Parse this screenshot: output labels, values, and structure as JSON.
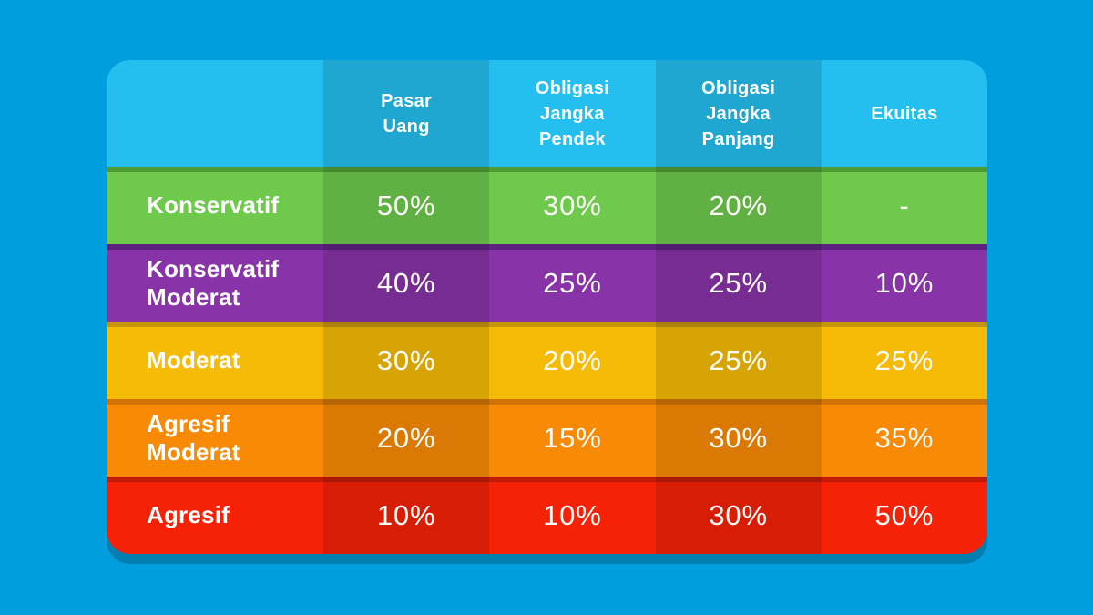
{
  "canvas": {
    "background_color": "#009EDC",
    "card_shadow_color": "rgba(6, 48, 70, 0.28)"
  },
  "table": {
    "header": {
      "columns": [
        "",
        "Pasar\nUang",
        "Obligasi\nJangka\nPendek",
        "Obligasi\nJangka\nPanjang",
        "Ekuitas"
      ],
      "colors": {
        "bg": "#24BFEE"
      }
    },
    "rows": [
      {
        "label": "Konservatif",
        "values": [
          "50%",
          "30%",
          "20%",
          "-"
        ],
        "colors": {
          "bg": "#6EC94D",
          "stripe": "#4F9C33"
        }
      },
      {
        "label": "Konservatif\nModerat",
        "values": [
          "40%",
          "25%",
          "25%",
          "10%"
        ],
        "colors": {
          "bg": "#8833A7",
          "stripe": "#5E2380"
        }
      },
      {
        "label": "Moderat",
        "values": [
          "30%",
          "20%",
          "25%",
          "25%"
        ],
        "colors": {
          "bg": "#F5BB06",
          "stripe": "#C4960A"
        }
      },
      {
        "label": "Agresif\nModerat",
        "values": [
          "20%",
          "15%",
          "30%",
          "35%"
        ],
        "colors": {
          "bg": "#F98A05",
          "stripe": "#D07304"
        }
      },
      {
        "label": "Agresif",
        "values": [
          "10%",
          "10%",
          "30%",
          "50%"
        ],
        "colors": {
          "bg": "#F62208",
          "stripe": "#C11C07"
        }
      }
    ],
    "text_color": "#FFFFFF"
  },
  "chart_data": {
    "type": "table",
    "title": "",
    "columns": [
      "",
      "Pasar Uang",
      "Obligasi Jangka Pendek",
      "Obligasi Jangka Panjang",
      "Ekuitas"
    ],
    "rows": [
      [
        "Konservatif",
        "50%",
        "30%",
        "20%",
        "-"
      ],
      [
        "Konservatif Moderat",
        "40%",
        "25%",
        "25%",
        "10%"
      ],
      [
        "Moderat",
        "30%",
        "20%",
        "25%",
        "25%"
      ],
      [
        "Agresif Moderat",
        "20%",
        "15%",
        "30%",
        "35%"
      ],
      [
        "Agresif",
        "10%",
        "10%",
        "30%",
        "50%"
      ]
    ]
  }
}
